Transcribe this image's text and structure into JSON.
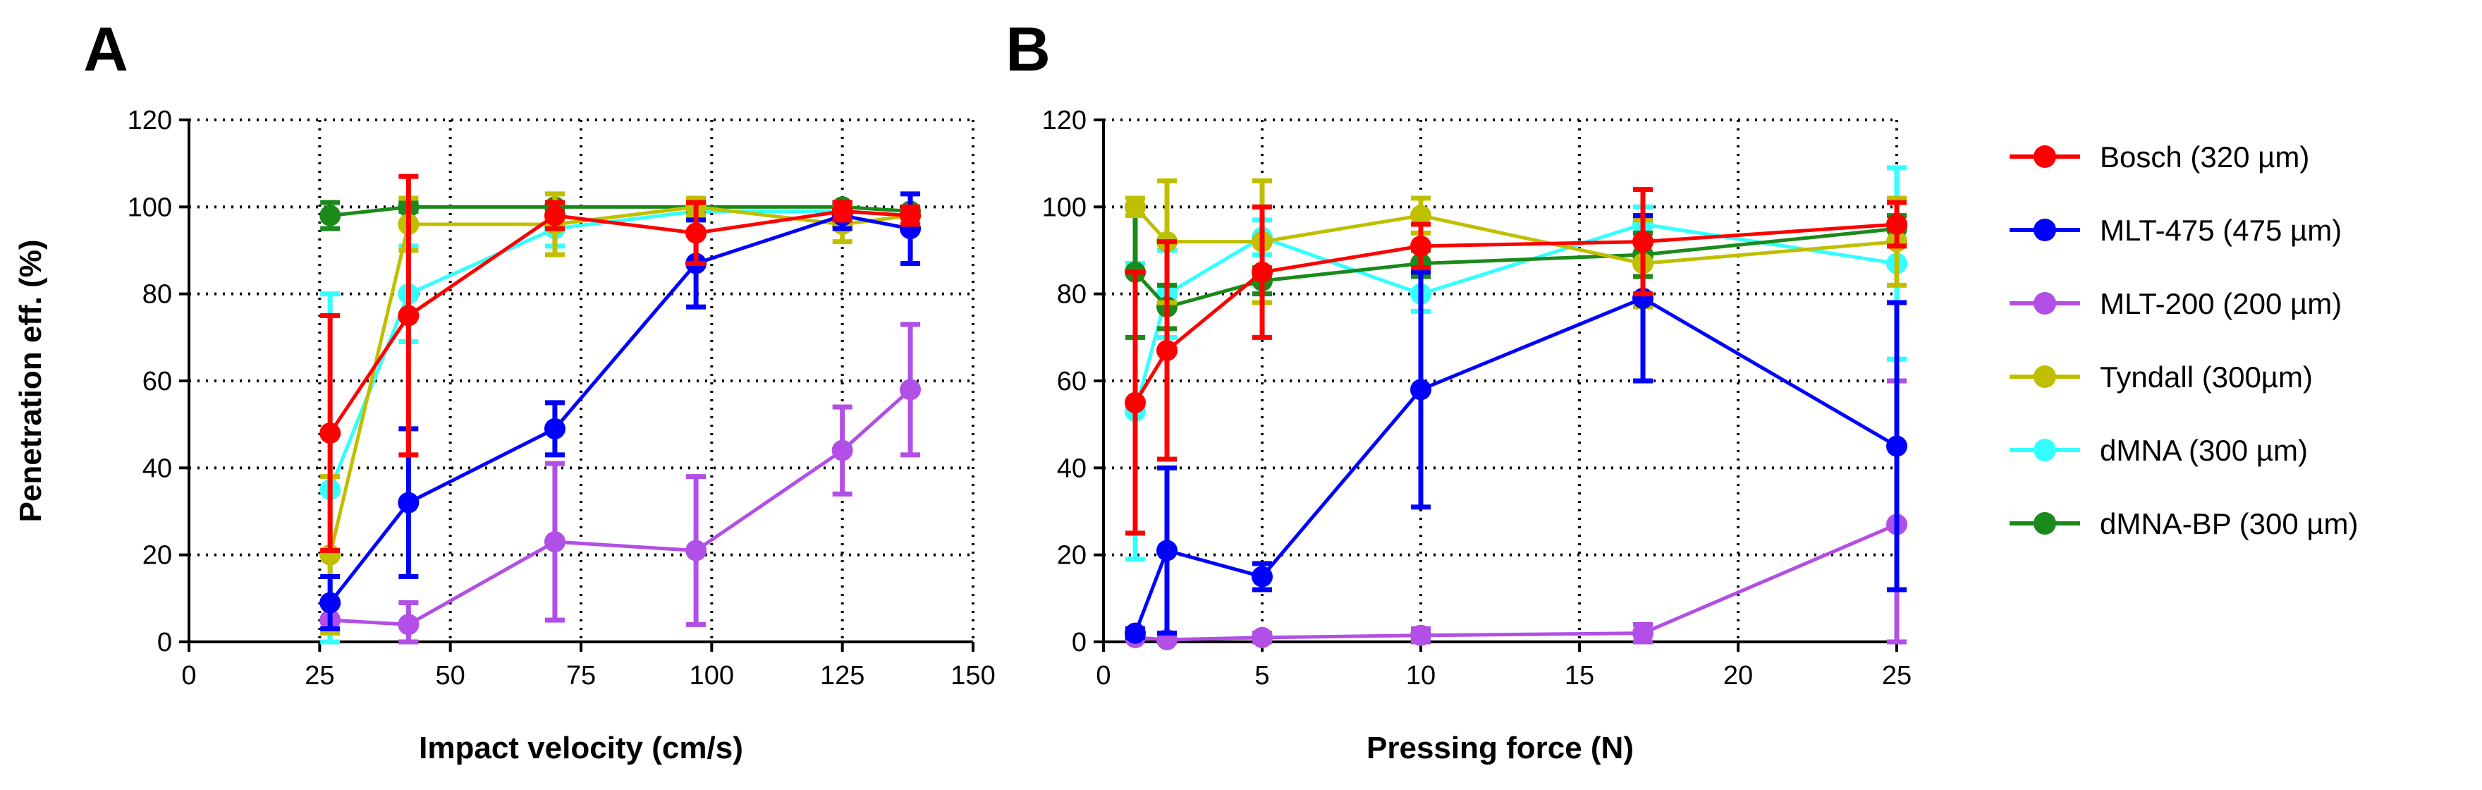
{
  "colors": {
    "bosch": "#ff0000",
    "mlt475": "#0000ff",
    "mlt200": "#b14fe6",
    "tyndall": "#bfbf00",
    "dmna": "#33ffff",
    "dmnabp": "#1a8a1a"
  },
  "legend": {
    "placement": "right",
    "entries": [
      {
        "key": "bosch",
        "label": "Bosch (320 µm)"
      },
      {
        "key": "mlt475",
        "label": "MLT-475 (475 µm)"
      },
      {
        "key": "mlt200",
        "label": "MLT-200 (200 µm)"
      },
      {
        "key": "tyndall",
        "label": "Tyndall (300µm)"
      },
      {
        "key": "dmna",
        "label": "dMNA (300 µm)"
      },
      {
        "key": "dmnabp",
        "label": "dMNA-BP (300 µm)"
      }
    ]
  },
  "chart_data": [
    {
      "panel": "A",
      "type": "line",
      "xlabel": "Impact velocity (cm/s)",
      "ylabel": "Penetration eff. (%)",
      "xlim": [
        0,
        150
      ],
      "ylim": [
        0,
        120
      ],
      "xticks": [
        0,
        25,
        50,
        75,
        100,
        125,
        150
      ],
      "yticks": [
        0,
        20,
        40,
        60,
        80,
        100,
        120
      ],
      "grid": true,
      "series": [
        {
          "key": "dmna",
          "name": "dMNA (300 µm)",
          "x": [
            27,
            42,
            70,
            97,
            125,
            138
          ],
          "y": [
            35,
            80,
            95,
            99,
            99,
            98
          ],
          "err": [
            45,
            11,
            4,
            2,
            2,
            2
          ]
        },
        {
          "key": "dmnabp",
          "name": "dMNA-BP (300 µm)",
          "x": [
            27,
            42,
            70,
            97,
            125,
            138
          ],
          "y": [
            98,
            100,
            100,
            100,
            100,
            99
          ],
          "err": [
            3,
            1,
            1,
            1,
            1,
            1
          ]
        },
        {
          "key": "tyndall",
          "name": "Tyndall (300µm)",
          "x": [
            27,
            42,
            70,
            97,
            125,
            138
          ],
          "y": [
            20,
            96,
            96,
            100,
            96,
            98
          ],
          "err": [
            18,
            6,
            7,
            2,
            4,
            2
          ]
        },
        {
          "key": "mlt200",
          "name": "MLT-200 (200 µm)",
          "x": [
            27,
            42,
            70,
            97,
            125,
            138
          ],
          "y": [
            5,
            4,
            23,
            21,
            44,
            58
          ],
          "err": [
            0,
            5,
            18,
            17,
            10,
            15
          ]
        },
        {
          "key": "mlt475",
          "name": "MLT-475 (475 µm)",
          "x": [
            27,
            42,
            70,
            97,
            125,
            138
          ],
          "y": [
            9,
            32,
            49,
            87,
            98,
            95
          ],
          "err": [
            6,
            17,
            6,
            10,
            3,
            8
          ]
        },
        {
          "key": "bosch",
          "name": "Bosch (320 µm)",
          "x": [
            27,
            42,
            70,
            97,
            125,
            138
          ],
          "y": [
            48,
            75,
            98,
            94,
            99,
            98
          ],
          "err": [
            27,
            32,
            3,
            7,
            2,
            2
          ]
        }
      ]
    },
    {
      "panel": "B",
      "type": "line",
      "xlabel": "Pressing force (N)",
      "ylabel": "",
      "xlim": [
        0,
        25
      ],
      "ylim": [
        0,
        120
      ],
      "xticks": [
        0,
        5,
        10,
        15,
        20,
        25
      ],
      "yticks": [
        0,
        20,
        40,
        60,
        80,
        100,
        120
      ],
      "grid": true,
      "series": [
        {
          "key": "dmna",
          "name": "dMNA (300 µm)",
          "x": [
            1,
            2,
            5,
            10,
            17,
            25
          ],
          "y": [
            53,
            80,
            93,
            80,
            96,
            87
          ],
          "err": [
            34,
            10,
            4,
            4,
            4,
            22
          ]
        },
        {
          "key": "dmnabp",
          "name": "dMNA-BP (300 µm)",
          "x": [
            1,
            2,
            5,
            10,
            17,
            25
          ],
          "y": [
            85,
            77,
            83,
            87,
            89,
            95
          ],
          "err": [
            15,
            5,
            3,
            3,
            5,
            3
          ]
        },
        {
          "key": "tyndall",
          "name": "Tyndall (300µm)",
          "x": [
            1,
            2,
            5,
            10,
            17,
            25
          ],
          "y": [
            100,
            92,
            92,
            98,
            87,
            92
          ],
          "err": [
            2,
            14,
            14,
            4,
            10,
            10
          ]
        },
        {
          "key": "mlt200",
          "name": "MLT-200 (200 µm)",
          "x": [
            1,
            2,
            5,
            10,
            17,
            25
          ],
          "y": [
            1,
            0.5,
            1,
            1.5,
            2,
            27
          ],
          "err": [
            0,
            0.5,
            1,
            1.5,
            2,
            33
          ]
        },
        {
          "key": "mlt475",
          "name": "MLT-475 (475 µm)",
          "x": [
            1,
            2,
            5,
            10,
            17,
            25
          ],
          "y": [
            2,
            21,
            15,
            58,
            79,
            45
          ],
          "err": [
            1,
            19,
            3,
            27,
            19,
            33
          ]
        },
        {
          "key": "bosch",
          "name": "Bosch (320 µm)",
          "x": [
            1,
            2,
            5,
            10,
            17,
            25
          ],
          "y": [
            55,
            67,
            85,
            91,
            92,
            96
          ],
          "err": [
            30,
            25,
            15,
            5,
            12,
            5
          ]
        }
      ]
    }
  ]
}
